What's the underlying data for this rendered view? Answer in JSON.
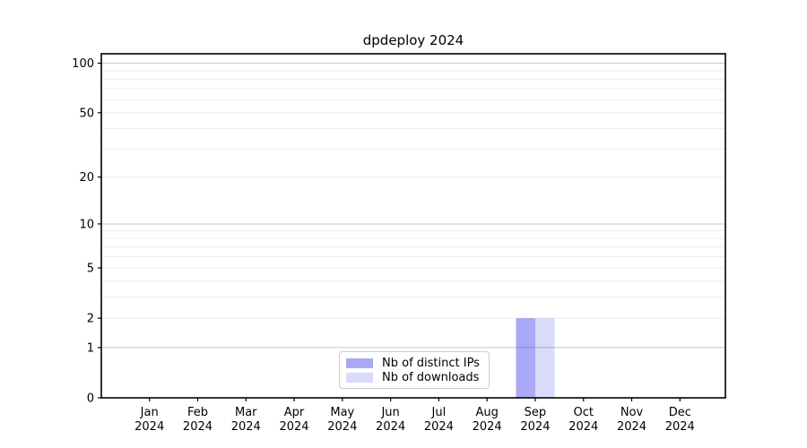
{
  "chart_data": {
    "type": "bar",
    "title": "dpdeploy 2024",
    "x_year": "2024",
    "categories": [
      "Jan",
      "Feb",
      "Mar",
      "Apr",
      "May",
      "Jun",
      "Jul",
      "Aug",
      "Sep",
      "Oct",
      "Nov",
      "Dec"
    ],
    "series": [
      {
        "name": "Nb of distinct IPs",
        "values": [
          0,
          0,
          0,
          0,
          0,
          0,
          0,
          0,
          2,
          0,
          0,
          0
        ],
        "base_color": "#0a0ae6",
        "alpha": 0.35,
        "blended_color": "#a9a9f6"
      },
      {
        "name": "Nb of downloads",
        "values": [
          0,
          0,
          0,
          0,
          0,
          0,
          0,
          0,
          2,
          0,
          0,
          0
        ],
        "base_color": "#0a0ae6",
        "alpha": 0.15,
        "blended_color": "#dadaf8"
      }
    ],
    "yscale": "log1p",
    "ylim": [
      0,
      114
    ],
    "xlabel": "",
    "ylabel": "",
    "y_ticks": [
      0,
      1,
      2,
      5,
      10,
      20,
      50,
      100
    ],
    "grid_major": [
      1,
      10,
      100
    ],
    "grid_minor": [
      2,
      3,
      4,
      5,
      6,
      7,
      8,
      9,
      20,
      30,
      40,
      50,
      60,
      70,
      80,
      90
    ],
    "legend_position": "lower center",
    "legend_labels": [
      "Nb of distinct IPs",
      "Nb of downloads"
    ],
    "colors": {
      "background": "#ffffff",
      "axis": "#000000",
      "text": "#000000",
      "grid_major": "#c8c8c8",
      "grid_minor": "#ebebeb",
      "legend_border": "#cccccc"
    }
  }
}
